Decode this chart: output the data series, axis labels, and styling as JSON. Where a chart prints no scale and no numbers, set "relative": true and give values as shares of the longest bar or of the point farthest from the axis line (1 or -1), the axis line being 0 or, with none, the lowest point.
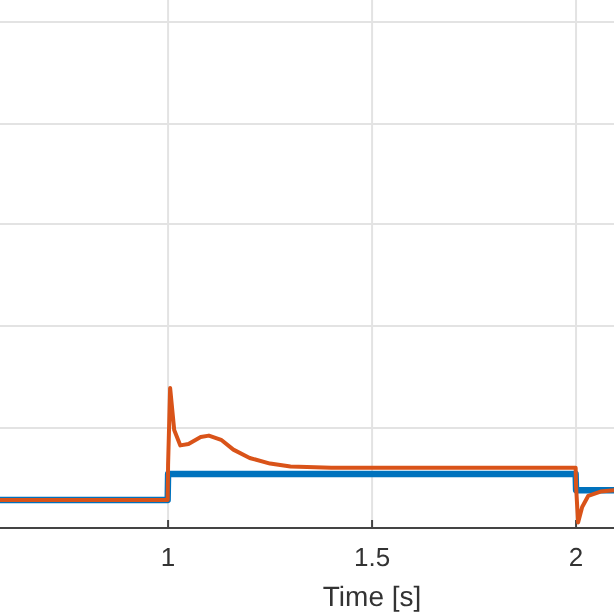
{
  "chart_data": {
    "type": "line",
    "xlabel": "Time [s]",
    "relative": true,
    "xlim": [
      0.588,
      2.093
    ],
    "xticks": [
      1,
      1.5,
      2
    ],
    "grid": true,
    "line_style": "solid",
    "marker": "none",
    "series": [
      {
        "color": "#0072bd",
        "x": [
          0.588,
          0.999,
          1.0,
          1.25,
          1.5,
          1.75,
          1.999,
          2.0,
          2.093
        ],
        "values": [
          0.2,
          0.2,
          0.386,
          0.386,
          0.386,
          0.386,
          0.386,
          0.27,
          0.27
        ]
      },
      {
        "color": "#d95319",
        "x": [
          0.588,
          0.999,
          1.0,
          1.005,
          1.015,
          1.03,
          1.05,
          1.08,
          1.1,
          1.13,
          1.16,
          1.2,
          1.25,
          1.3,
          1.4,
          1.6,
          1.8,
          1.999,
          2.0,
          2.005,
          2.015,
          2.03,
          2.06,
          2.093
        ],
        "values": [
          0.2,
          0.2,
          0.45,
          1,
          0.7,
          0.59,
          0.6,
          0.65,
          0.66,
          0.63,
          0.56,
          0.5,
          0.46,
          0.44,
          0.43,
          0.43,
          0.43,
          0.43,
          0.3,
          0.04,
          0.15,
          0.23,
          0.26,
          0.27
        ]
      }
    ]
  }
}
